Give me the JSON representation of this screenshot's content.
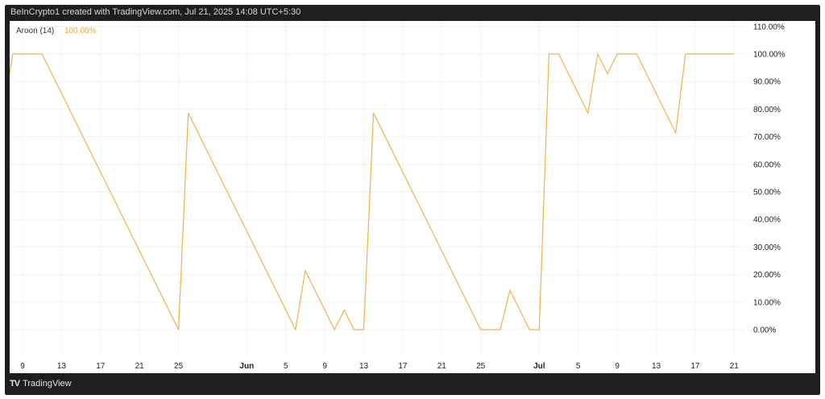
{
  "header": {
    "attribution": "BeInCrypto1 created with TradingView.com, Jul 21, 2025 14:08 UTC+5:30"
  },
  "legend": {
    "name": "Aroon (14)",
    "value": "100.00%"
  },
  "footer": {
    "brand": "TradingView",
    "logo_icon": "tradingview-logo-icon"
  },
  "colors": {
    "line": "#f3b04a",
    "value_text": "#f3a93a",
    "frame": "#1e1e1e"
  },
  "chart_data": {
    "type": "line",
    "title": "",
    "xlabel": "",
    "ylabel": "",
    "ylim": [
      -10,
      110
    ],
    "grid": true,
    "y_ticks": [
      "110.00%",
      "100.00%",
      "90.00%",
      "80.00%",
      "70.00%",
      "60.00%",
      "50.00%",
      "40.00%",
      "30.00%",
      "20.00%",
      "10.00%",
      "0.00%"
    ],
    "x_ticks": [
      {
        "date": "2025-05-09",
        "label": "9"
      },
      {
        "date": "2025-05-13",
        "label": "13"
      },
      {
        "date": "2025-05-17",
        "label": "17"
      },
      {
        "date": "2025-05-21",
        "label": "21"
      },
      {
        "date": "2025-05-25",
        "label": "25"
      },
      {
        "date": "2025-06-01",
        "label": "Jun",
        "bold": true
      },
      {
        "date": "2025-06-05",
        "label": "5"
      },
      {
        "date": "2025-06-09",
        "label": "9"
      },
      {
        "date": "2025-06-13",
        "label": "13"
      },
      {
        "date": "2025-06-17",
        "label": "17"
      },
      {
        "date": "2025-06-21",
        "label": "21"
      },
      {
        "date": "2025-06-25",
        "label": "25"
      },
      {
        "date": "2025-07-01",
        "label": "Jul",
        "bold": true
      },
      {
        "date": "2025-07-05",
        "label": "5"
      },
      {
        "date": "2025-07-09",
        "label": "9"
      },
      {
        "date": "2025-07-13",
        "label": "13"
      },
      {
        "date": "2025-07-17",
        "label": "17"
      },
      {
        "date": "2025-07-21",
        "label": "21"
      }
    ],
    "series": [
      {
        "points": [
          [
            "2025-05-07",
            78.6
          ],
          [
            "2025-05-08",
            100
          ],
          [
            "2025-05-11",
            100
          ],
          [
            "2025-05-25",
            0
          ],
          [
            "2025-05-26",
            78.6
          ],
          [
            "2025-06-06",
            0
          ],
          [
            "2025-06-07",
            21.4
          ],
          [
            "2025-06-10",
            0
          ],
          [
            "2025-06-11",
            7.1
          ],
          [
            "2025-06-12",
            0
          ],
          [
            "2025-06-13",
            0
          ],
          [
            "2025-06-14",
            78.6
          ],
          [
            "2025-06-25",
            0
          ],
          [
            "2025-06-27",
            0
          ],
          [
            "2025-06-28",
            14.3
          ],
          [
            "2025-06-30",
            0
          ],
          [
            "2025-07-01",
            0
          ],
          [
            "2025-07-02",
            100
          ],
          [
            "2025-07-03",
            100
          ],
          [
            "2025-07-06",
            78.6
          ],
          [
            "2025-07-07",
            100
          ],
          [
            "2025-07-08",
            92.9
          ],
          [
            "2025-07-09",
            100
          ],
          [
            "2025-07-11",
            100
          ],
          [
            "2025-07-15",
            71.4
          ],
          [
            "2025-07-16",
            100
          ],
          [
            "2025-07-21",
            100
          ]
        ]
      }
    ]
  }
}
